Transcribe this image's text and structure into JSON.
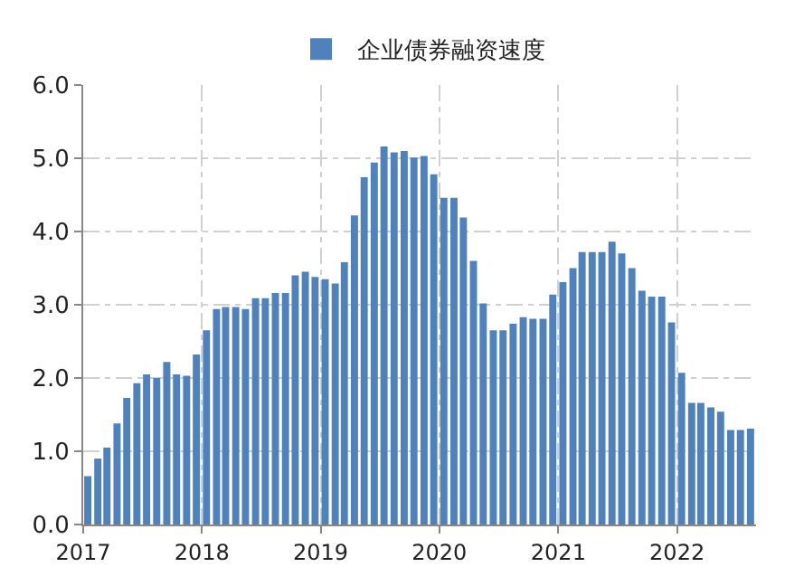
{
  "chart_data": {
    "type": "bar",
    "x": [
      "2017-01-15",
      "2017-02-15",
      "2017-03-15",
      "2017-04-15",
      "2017-05-15",
      "2017-06-15",
      "2017-07-15",
      "2017-08-15",
      "2017-09-15",
      "2017-10-15",
      "2017-11-15",
      "2017-12-15",
      "2018-01-15",
      "2018-02-15",
      "2018-03-15",
      "2018-04-15",
      "2018-05-15",
      "2018-06-15",
      "2018-07-15",
      "2018-08-15",
      "2018-09-15",
      "2018-10-15",
      "2018-11-15",
      "2018-12-15",
      "2019-01-15",
      "2019-02-15",
      "2019-03-15",
      "2019-04-15",
      "2019-05-15",
      "2019-06-15",
      "2019-07-15",
      "2019-08-15",
      "2019-09-15",
      "2019-10-15",
      "2019-11-15",
      "2019-12-15",
      "2020-01-15",
      "2020-02-15",
      "2020-03-15",
      "2020-04-15",
      "2020-05-15",
      "2020-06-15",
      "2020-07-15",
      "2020-08-15",
      "2020-09-15",
      "2020-10-15",
      "2020-11-15",
      "2020-12-15",
      "2021-01-15",
      "2021-02-15",
      "2021-03-15",
      "2021-04-15",
      "2021-05-15",
      "2021-06-15",
      "2021-07-15",
      "2021-08-15",
      "2021-09-15",
      "2021-10-15",
      "2021-11-15",
      "2021-12-15",
      "2022-01-15",
      "2022-02-15",
      "2022-03-15",
      "2022-04-15",
      "2022-05-15",
      "2022-06-15",
      "2022-07-15",
      "2022-08-15"
    ],
    "series": [
      {
        "name": "企业债券融资速度",
        "color": "#4f81bd",
        "values": [
          0.66,
          0.9,
          1.05,
          1.38,
          1.73,
          1.93,
          2.05,
          2.0,
          2.22,
          2.05,
          2.03,
          2.32,
          2.65,
          2.94,
          2.97,
          2.97,
          2.94,
          3.09,
          3.09,
          3.16,
          3.16,
          3.4,
          3.45,
          3.38,
          3.35,
          3.29,
          3.58,
          4.22,
          4.74,
          4.94,
          5.16,
          5.08,
          5.1,
          5.01,
          5.03,
          4.78,
          4.46,
          4.46,
          4.19,
          3.6,
          3.02,
          2.65,
          2.65,
          2.74,
          2.83,
          2.81,
          2.81,
          3.14,
          3.31,
          3.5,
          3.72,
          3.72,
          3.72,
          3.86,
          3.7,
          3.5,
          3.19,
          3.11,
          3.11,
          2.76,
          2.07,
          1.66,
          1.66,
          1.6,
          1.54,
          1.29,
          1.29,
          1.31
        ]
      }
    ],
    "xlim": [
      "2017-01-01",
      "2022-09-01"
    ],
    "xticks": [
      "2017",
      "2018",
      "2019",
      "2020",
      "2021",
      "2022"
    ],
    "ylim": [
      0,
      6
    ],
    "yticks": [
      {
        "value": 0,
        "label": "0.0"
      },
      {
        "value": 1,
        "label": "1.0"
      },
      {
        "value": 2,
        "label": "2.0"
      },
      {
        "value": 3,
        "label": "3.0"
      },
      {
        "value": 4,
        "label": "4.0"
      },
      {
        "value": 5,
        "label": "5.0"
      },
      {
        "value": 6,
        "label": "6.0"
      }
    ],
    "grid": true,
    "legend": "top"
  }
}
